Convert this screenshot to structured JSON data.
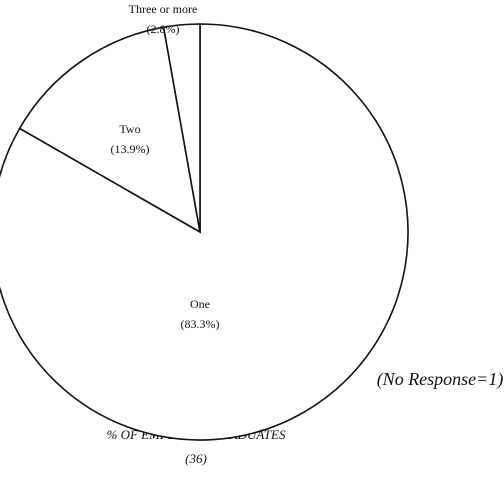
{
  "chart_data": {
    "type": "pie",
    "categories": [
      "One",
      "Two",
      "Three or more"
    ],
    "values": [
      83.3,
      13.9,
      2.8
    ],
    "value_labels": [
      "(83.3%)",
      "(13.9%)",
      "(2.8%)"
    ],
    "color": "#ffffff",
    "edge_color": "#111111",
    "note": "(No Response=1)",
    "caption": "% OF EMPLOYED GRADUATES",
    "subcaption": "(36)"
  }
}
